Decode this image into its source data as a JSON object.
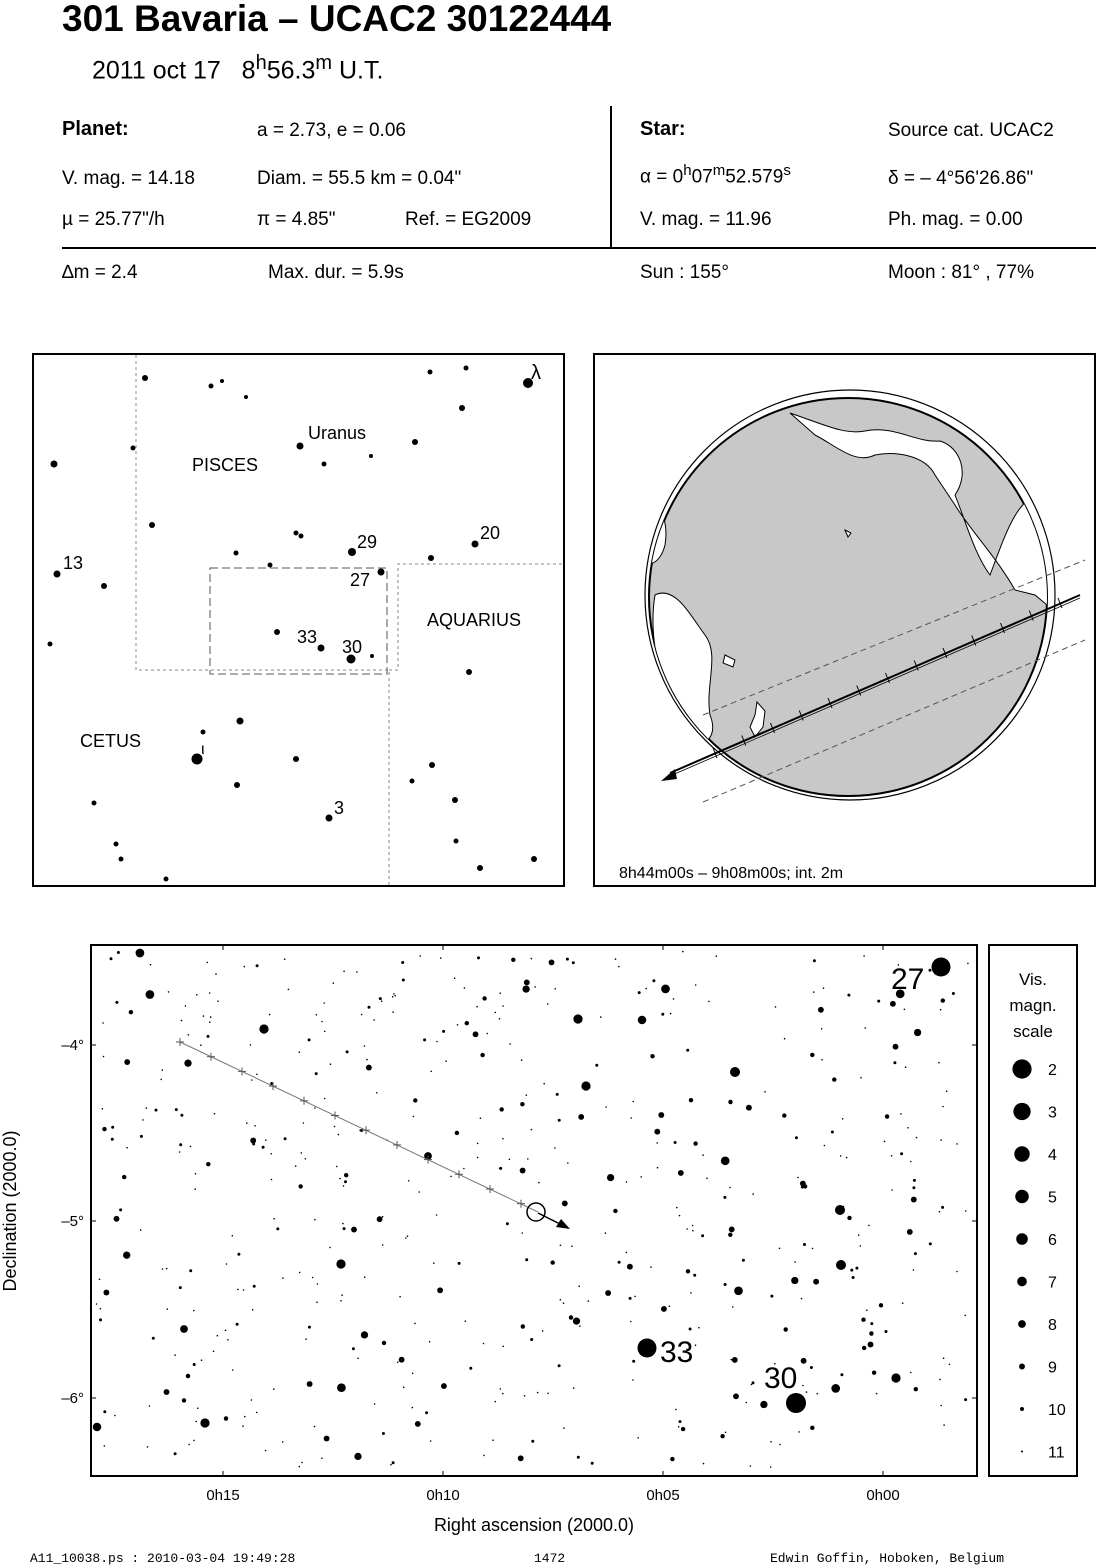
{
  "header": {
    "title": "301 Bavaria  –  UCAC2 30122444",
    "date": "2011 oct 17",
    "time_h": "8",
    "time_h_unit": "h",
    "time_m": "56.3",
    "time_m_unit": "m",
    "time_suffix": "U.T."
  },
  "planet": {
    "label": "Planet:",
    "orbit": "a = 2.73, e = 0.06",
    "vmag": "V. mag. = 14.18",
    "diam": "Diam. = 55.5 km = 0.04\"",
    "mu": "µ =  25.77\"/h",
    "pi": "π =  4.85\"",
    "ref": "Ref. = EG2009"
  },
  "star": {
    "label": "Star:",
    "source": "Source cat.  UCAC2",
    "alpha_prefix": "α =  0",
    "alpha_h": "h",
    "alpha_mid": "07",
    "alpha_m": "m",
    "alpha_sec": "52.579",
    "alpha_s": "s",
    "delta": "δ = – 4°56'26.86\"",
    "vmag": "V. mag. = 11.96",
    "phmag": "Ph. mag. =  0.00"
  },
  "event": {
    "dm": "∆m = 2.4",
    "maxdur": "Max. dur. = 5.9s",
    "sun": "Sun : 155°",
    "moon": "Moon :  81° , 77%"
  },
  "finder": {
    "constellations": [
      "PISCES",
      "AQUARIUS",
      "CETUS"
    ],
    "planet_label": "Uranus",
    "star_labels": [
      "λ",
      "ι",
      "13",
      "29",
      "20",
      "27",
      "33",
      "30",
      "3"
    ]
  },
  "globe": {
    "caption": "8h44m00s –  9h08m00s; int.  2m"
  },
  "chart_data": {
    "type": "scatter",
    "xlabel": "Right ascension (2000.0)",
    "ylabel": "Declination (2000.0)",
    "x_tick_labels": [
      "0h15",
      "0h10",
      "0h05",
      "0h00"
    ],
    "y_tick_labels": [
      "–4°",
      "–5°",
      "–6°"
    ],
    "labeled_stars": [
      {
        "label": "27",
        "ra": "23h58.7m",
        "dec": -3.55,
        "mag": 5
      },
      {
        "label": "33",
        "ra": "0h05.3m",
        "dec": -5.71,
        "mag": 4
      },
      {
        "label": "30",
        "ra": "0h02.0m",
        "dec": -6.01,
        "mag": 4
      }
    ],
    "scale": {
      "title": [
        "Vis.",
        "magn.",
        "scale"
      ],
      "mags": [
        2,
        3,
        4,
        5,
        6,
        7,
        8,
        9,
        10,
        11
      ]
    }
  },
  "footer": {
    "file": "A11_10038.ps : 2010-03-04 19:49:28",
    "page": "1472",
    "author": "Edwin Goffin, Hoboken, Belgium"
  }
}
